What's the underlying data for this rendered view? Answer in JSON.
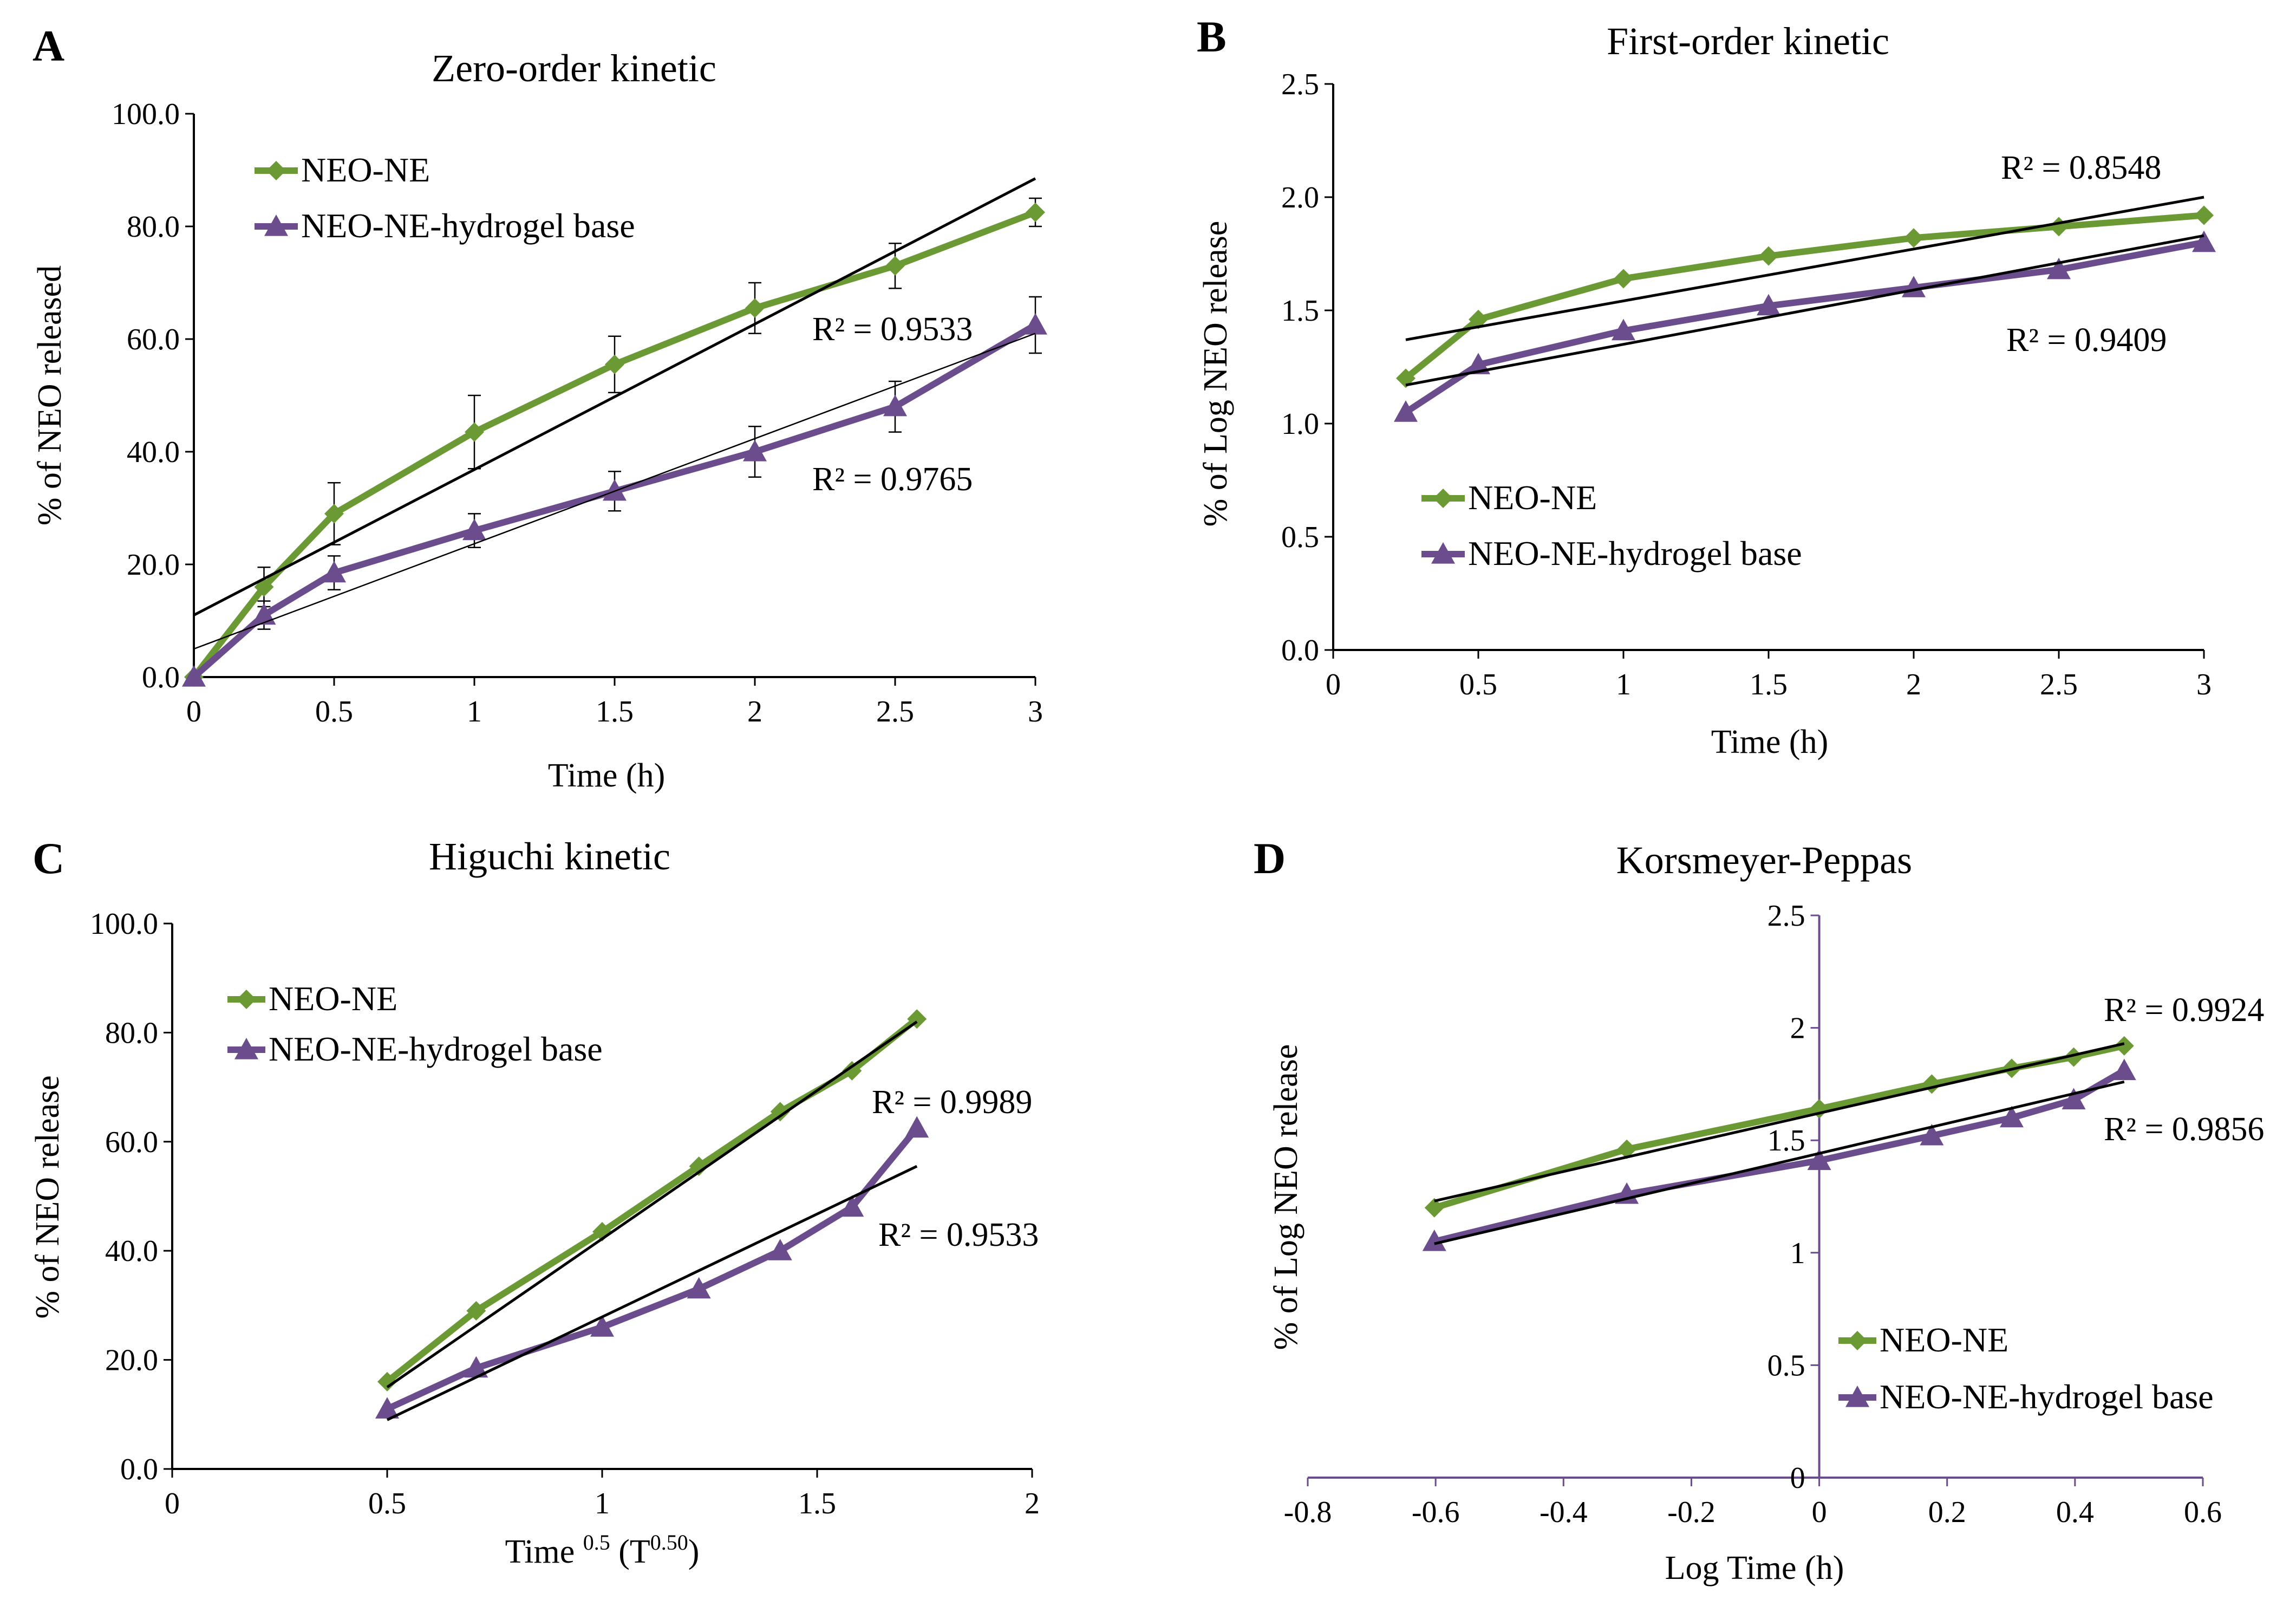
{
  "colors": {
    "neo_ne": "#6b9a34",
    "hydrogel": "#6b4c8c",
    "trendline": "#000000",
    "axis": "#000000",
    "axis_d": "#6b4c8c"
  },
  "chart_data": [
    {
      "id": "A",
      "type": "line",
      "letter": "A",
      "title": "Zero-order kinetic",
      "xlabel": "Time (h)",
      "ylabel": "% of NEO released",
      "xlim": [
        0,
        3
      ],
      "ylim": [
        0,
        100
      ],
      "xticks": [
        0,
        0.5,
        1,
        1.5,
        2,
        2.5,
        3
      ],
      "xtick_labels": [
        "0",
        "0.5",
        "1",
        "1.5",
        "2",
        "2.5",
        "3"
      ],
      "yticks": [
        0,
        20,
        40,
        60,
        80,
        100
      ],
      "ytick_labels": [
        "0.0",
        "20.0",
        "40.0",
        "60.0",
        "80.0",
        "100.0"
      ],
      "legend": [
        "NEO-NE",
        "NEO-NE-hydrogel base"
      ],
      "series": [
        {
          "name": "NEO-NE",
          "marker": "diamond",
          "x": [
            0,
            0.25,
            0.5,
            1,
            1.5,
            2,
            2.5,
            3
          ],
          "y": [
            0,
            16,
            29,
            43.5,
            55.5,
            65.5,
            73,
            82.5
          ],
          "err": [
            0,
            3.5,
            5.5,
            6.5,
            5,
            4.5,
            4,
            2.5
          ]
        },
        {
          "name": "NEO-NE-hydrogel base",
          "marker": "triangle",
          "x": [
            0,
            0.25,
            0.5,
            1,
            1.5,
            2,
            2.5,
            3
          ],
          "y": [
            0,
            11,
            18.5,
            26,
            33,
            40,
            48,
            62.5
          ],
          "err": [
            0,
            2.5,
            3,
            3,
            3.5,
            4.5,
            4.5,
            5
          ]
        }
      ],
      "trendlines": [
        {
          "series": "NEO-NE",
          "x": [
            0,
            3
          ],
          "y": [
            11,
            88.5
          ],
          "r2": "R² = 0.9533"
        },
        {
          "series": "NEO-NE-hydrogel base",
          "x": [
            0,
            3
          ],
          "y": [
            5,
            61
          ],
          "r2": "R² = 0.9765"
        }
      ]
    },
    {
      "id": "B",
      "type": "line",
      "letter": "B",
      "title": "First-order kinetic",
      "xlabel": "Time (h)",
      "ylabel": "% of Log NEO release",
      "xlim": [
        0,
        3
      ],
      "ylim": [
        0,
        2.5
      ],
      "xticks": [
        0,
        0.5,
        1,
        1.5,
        2,
        2.5,
        3
      ],
      "xtick_labels": [
        "0",
        "0.5",
        "1",
        "1.5",
        "2",
        "2.5",
        "3"
      ],
      "yticks": [
        0,
        0.5,
        1,
        1.5,
        2,
        2.5
      ],
      "ytick_labels": [
        "0.0",
        "0.5",
        "1.0",
        "1.5",
        "2.0",
        "2.5"
      ],
      "legend": [
        "NEO-NE",
        "NEO-NE-hydrogel base"
      ],
      "series": [
        {
          "name": "NEO-NE",
          "marker": "diamond",
          "x": [
            0.25,
            0.5,
            1,
            1.5,
            2,
            2.5,
            3
          ],
          "y": [
            1.2,
            1.46,
            1.64,
            1.74,
            1.82,
            1.87,
            1.92
          ]
        },
        {
          "name": "NEO-NE-hydrogel base",
          "marker": "triangle",
          "x": [
            0.25,
            0.5,
            1,
            1.5,
            2,
            2.5,
            3
          ],
          "y": [
            1.05,
            1.26,
            1.41,
            1.52,
            1.6,
            1.68,
            1.8
          ]
        }
      ],
      "trendlines": [
        {
          "series": "NEO-NE",
          "x": [
            0.25,
            3
          ],
          "y": [
            1.37,
            2.0
          ],
          "r2": "R² = 0.8548"
        },
        {
          "series": "NEO-NE-hydrogel base",
          "x": [
            0.25,
            3
          ],
          "y": [
            1.17,
            1.83
          ],
          "r2": "R² = 0.9409"
        }
      ]
    },
    {
      "id": "C",
      "type": "line",
      "letter": "C",
      "title": "Higuchi kinetic",
      "xlabel_main": "Time ",
      "xlabel_sup1": "0.5",
      "xlabel_mid": " (T",
      "xlabel_sup2": "0.50",
      "xlabel_end": ")",
      "ylabel": "% of NEO release",
      "xlim": [
        0,
        2
      ],
      "ylim": [
        0,
        100
      ],
      "xticks": [
        0,
        0.5,
        1,
        1.5,
        2
      ],
      "xtick_labels": [
        "0",
        "0.5",
        "1",
        "1.5",
        "2"
      ],
      "yticks": [
        0,
        20,
        40,
        60,
        80,
        100
      ],
      "ytick_labels": [
        "0.0",
        "20.0",
        "40.0",
        "60.0",
        "80.0",
        "100.0"
      ],
      "legend": [
        "NEO-NE",
        "NEO-NE-hydrogel base"
      ],
      "series": [
        {
          "name": "NEO-NE",
          "marker": "diamond",
          "x": [
            0.5,
            0.707,
            1,
            1.225,
            1.414,
            1.581,
            1.732
          ],
          "y": [
            16,
            29,
            43.5,
            55.5,
            65.5,
            73,
            82.5
          ]
        },
        {
          "name": "NEO-NE-hydrogel base",
          "marker": "triangle",
          "x": [
            0.5,
            0.707,
            1,
            1.225,
            1.414,
            1.581,
            1.732
          ],
          "y": [
            11,
            18.5,
            26,
            33,
            40,
            48,
            62.5
          ]
        }
      ],
      "trendlines": [
        {
          "series": "NEO-NE",
          "x": [
            0.5,
            1.732
          ],
          "y": [
            15,
            82
          ],
          "r2": "R² = 0.9989"
        },
        {
          "series": "NEO-NE-hydrogel base",
          "x": [
            0.5,
            1.732
          ],
          "y": [
            9,
            55.5
          ],
          "r2": "R² = 0.9533"
        }
      ]
    },
    {
      "id": "D",
      "type": "line",
      "letter": "D",
      "title": "Korsmeyer-Peppas",
      "xlabel": "Log Time (h)",
      "ylabel": "% of Log NEO release",
      "xlim": [
        -0.8,
        0.6
      ],
      "ylim": [
        0,
        2.5
      ],
      "xticks": [
        -0.8,
        -0.6,
        -0.4,
        -0.2,
        0,
        0.2,
        0.4,
        0.6
      ],
      "xtick_labels": [
        "-0.8",
        "-0.6",
        "-0.4",
        "-0.2",
        "0",
        "0.2",
        "0.4",
        "0.6"
      ],
      "yticks": [
        0,
        0.5,
        1,
        1.5,
        2,
        2.5
      ],
      "ytick_labels": [
        "0",
        "0.5",
        "1",
        "1.5",
        "2",
        "2.5"
      ],
      "legend": [
        "NEO-NE",
        "NEO-NE-hydrogel base"
      ],
      "series": [
        {
          "name": "NEO-NE",
          "marker": "diamond",
          "x": [
            -0.602,
            -0.301,
            0,
            0.176,
            0.301,
            0.398,
            0.477
          ],
          "y": [
            1.2,
            1.46,
            1.64,
            1.75,
            1.82,
            1.87,
            1.92
          ]
        },
        {
          "name": "NEO-NE-hydrogel base",
          "marker": "triangle",
          "x": [
            -0.602,
            -0.301,
            0,
            0.176,
            0.301,
            0.398,
            0.477
          ],
          "y": [
            1.05,
            1.26,
            1.41,
            1.52,
            1.6,
            1.68,
            1.81
          ]
        }
      ],
      "trendlines": [
        {
          "series": "NEO-NE",
          "x": [
            -0.602,
            0.477
          ],
          "y": [
            1.23,
            1.93
          ],
          "r2": "R² = 0.9924"
        },
        {
          "series": "NEO-NE-hydrogel base",
          "x": [
            -0.602,
            0.477
          ],
          "y": [
            1.04,
            1.76
          ],
          "r2": "R² = 0.9856"
        }
      ]
    }
  ]
}
